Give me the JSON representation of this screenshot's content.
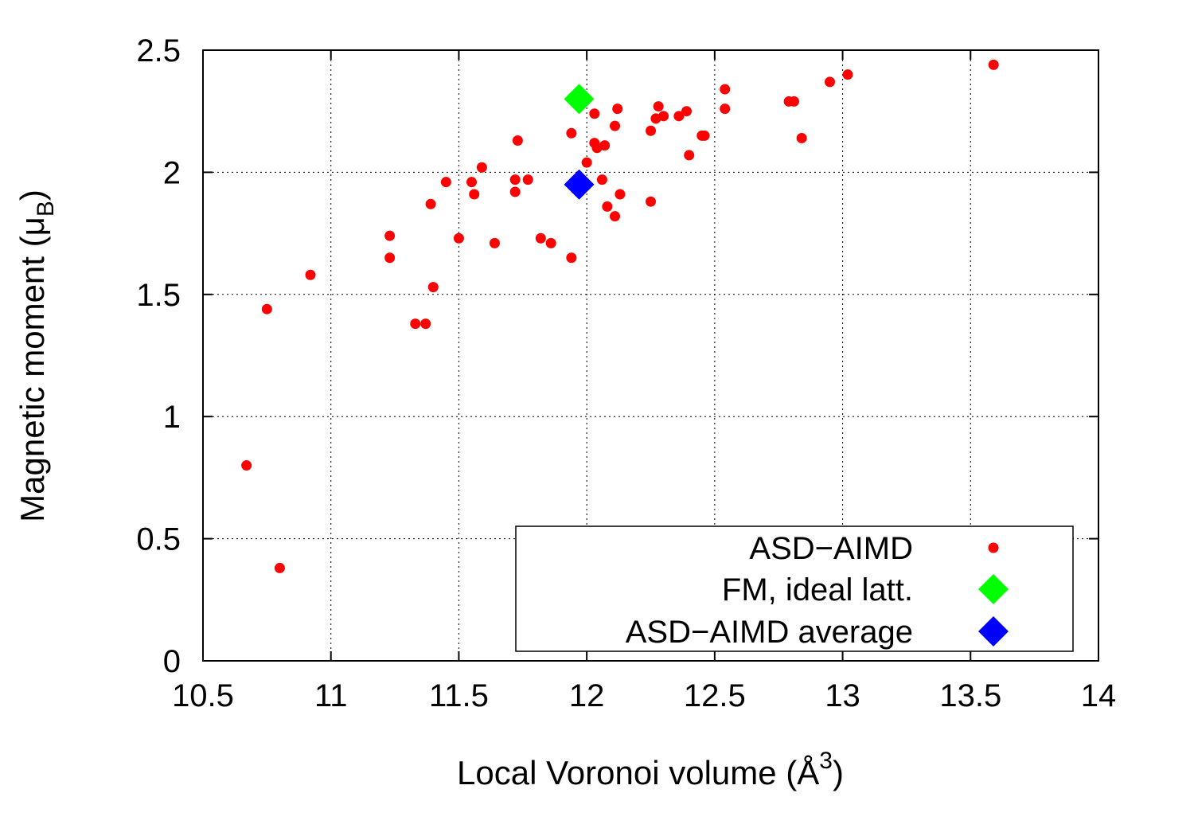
{
  "chart_data": {
    "type": "scatter",
    "title": "",
    "xlabel": {
      "main": "Local Voronoi volume (Å",
      "superscript": "3",
      "suffix": ")"
    },
    "ylabel": {
      "main": "Magnetic moment (μ",
      "subscript": "B",
      "suffix": ")"
    },
    "xlim": [
      10.5,
      14
    ],
    "ylim": [
      0,
      2.5
    ],
    "xticks": [
      "10.5",
      "11",
      "11.5",
      "12",
      "12.5",
      "13",
      "13.5",
      "14"
    ],
    "yticks": [
      "0",
      "0.5",
      "1",
      "1.5",
      "2",
      "2.5"
    ],
    "grid": true,
    "legend_position": "bottom-right",
    "series": [
      {
        "name": "ASD−AIMD",
        "marker": "dot",
        "color": "#ff0000",
        "points": [
          [
            10.67,
            0.8
          ],
          [
            10.75,
            1.44
          ],
          [
            10.8,
            0.38
          ],
          [
            10.92,
            1.58
          ],
          [
            11.23,
            1.65
          ],
          [
            11.23,
            1.74
          ],
          [
            11.33,
            1.38
          ],
          [
            11.37,
            1.38
          ],
          [
            11.39,
            1.87
          ],
          [
            11.4,
            1.53
          ],
          [
            11.45,
            1.96
          ],
          [
            11.5,
            1.73
          ],
          [
            11.55,
            1.96
          ],
          [
            11.56,
            1.91
          ],
          [
            11.59,
            2.02
          ],
          [
            11.64,
            1.71
          ],
          [
            11.72,
            1.92
          ],
          [
            11.72,
            1.97
          ],
          [
            11.73,
            2.13
          ],
          [
            11.77,
            1.97
          ],
          [
            11.82,
            1.73
          ],
          [
            11.86,
            1.71
          ],
          [
            11.94,
            1.65
          ],
          [
            11.94,
            2.16
          ],
          [
            12.0,
            2.04
          ],
          [
            12.03,
            2.24
          ],
          [
            12.03,
            2.12
          ],
          [
            12.04,
            2.1
          ],
          [
            12.06,
            1.97
          ],
          [
            12.07,
            2.11
          ],
          [
            12.08,
            1.86
          ],
          [
            12.11,
            2.19
          ],
          [
            12.11,
            1.82
          ],
          [
            12.12,
            2.26
          ],
          [
            12.13,
            1.91
          ],
          [
            12.25,
            2.17
          ],
          [
            12.25,
            1.88
          ],
          [
            12.27,
            2.22
          ],
          [
            12.28,
            2.27
          ],
          [
            12.3,
            2.23
          ],
          [
            12.36,
            2.23
          ],
          [
            12.39,
            2.25
          ],
          [
            12.4,
            2.07
          ],
          [
            12.45,
            2.15
          ],
          [
            12.46,
            2.15
          ],
          [
            12.54,
            2.34
          ],
          [
            12.54,
            2.26
          ],
          [
            12.79,
            2.29
          ],
          [
            12.81,
            2.29
          ],
          [
            12.84,
            2.14
          ],
          [
            12.95,
            2.37
          ],
          [
            13.02,
            2.4
          ],
          [
            13.59,
            2.44
          ]
        ]
      },
      {
        "name": "FM, ideal latt.",
        "marker": "diamond",
        "color": "#00ff00",
        "points": [
          [
            11.97,
            2.3
          ]
        ]
      },
      {
        "name": "ASD−AIMD average",
        "marker": "diamond",
        "color": "#0000ff",
        "points": [
          [
            11.97,
            1.95
          ]
        ]
      }
    ]
  }
}
